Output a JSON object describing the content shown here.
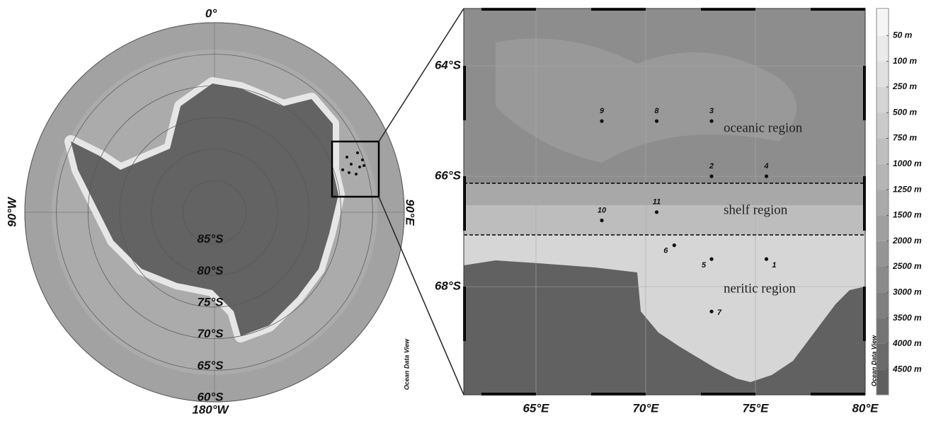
{
  "left_map": {
    "top_label": "0°",
    "right_label": "90°E",
    "bottom_label": "180°W",
    "left_label": "90°W",
    "latitude_rings": [
      {
        "value": -85,
        "label": "85°S"
      },
      {
        "value": -80,
        "label": "80°S"
      },
      {
        "value": -75,
        "label": "75°S"
      },
      {
        "value": -70,
        "label": "70°S"
      },
      {
        "value": -65,
        "label": "65°S"
      },
      {
        "value": -60,
        "label": "60°S"
      }
    ],
    "credit": "Ocean Data View"
  },
  "right_map": {
    "xlim": [
      61.71,
      80
    ],
    "ylim": [
      -62.96,
      -69.96
    ],
    "xticks": [
      {
        "value": 65,
        "label": "65°E"
      },
      {
        "value": 70,
        "label": "70°E"
      },
      {
        "value": 75,
        "label": "75°E"
      },
      {
        "value": 80,
        "label": "80°E"
      }
    ],
    "yticks": [
      {
        "value": -64,
        "label": "64°S"
      },
      {
        "value": -66,
        "label": "66°S"
      },
      {
        "value": -68,
        "label": "68°S"
      }
    ],
    "regions": [
      "oceanic region",
      "shelf region",
      "neritic region"
    ],
    "stations": [
      {
        "label": "1",
        "lon": 75.5,
        "lat": -67.5
      },
      {
        "label": "2",
        "lon": 73,
        "lat": -66
      },
      {
        "label": "3",
        "lon": 73,
        "lat": -65
      },
      {
        "label": "4",
        "lon": 75.5,
        "lat": -66
      },
      {
        "label": "5",
        "lon": 73,
        "lat": -67.5
      },
      {
        "label": "6",
        "lon": 71.3,
        "lat": -67.25
      },
      {
        "label": "7",
        "lon": 73,
        "lat": -68.45
      },
      {
        "label": "8",
        "lon": 70.5,
        "lat": -65
      },
      {
        "label": "9",
        "lon": 68,
        "lat": -65
      },
      {
        "label": "10",
        "lon": 68,
        "lat": -66.8
      },
      {
        "label": "11",
        "lon": 70.5,
        "lat": -66.65
      }
    ],
    "credit": "Ocean Data View"
  },
  "colorbar": {
    "ticks": [
      {
        "value": 50,
        "label": "50 m"
      },
      {
        "value": 100,
        "label": "100 m"
      },
      {
        "value": 250,
        "label": "250 m"
      },
      {
        "value": 500,
        "label": "500 m"
      },
      {
        "value": 750,
        "label": "750 m"
      },
      {
        "value": 1000,
        "label": "1000 m"
      },
      {
        "value": 1250,
        "label": "1250 m"
      },
      {
        "value": 1500,
        "label": "1500 m"
      },
      {
        "value": 2000,
        "label": "2000 m"
      },
      {
        "value": 2500,
        "label": "2500 m"
      },
      {
        "value": 3000,
        "label": "3000 m"
      },
      {
        "value": 3500,
        "label": "3500 m"
      },
      {
        "value": 4000,
        "label": "4000 m"
      },
      {
        "value": 4500,
        "label": "4500 m"
      }
    ]
  }
}
